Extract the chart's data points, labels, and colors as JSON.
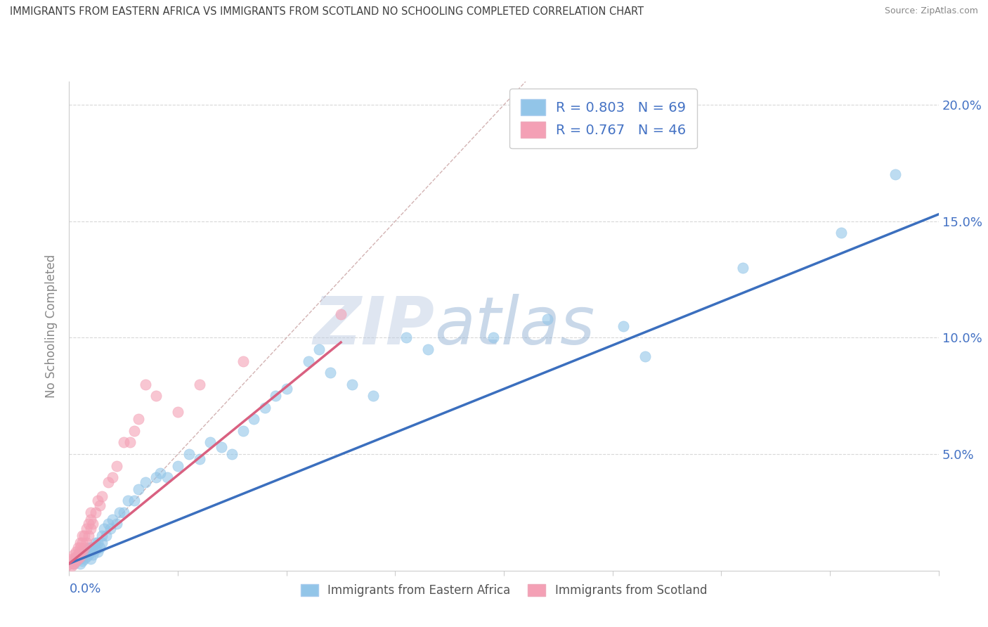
{
  "title": "IMMIGRANTS FROM EASTERN AFRICA VS IMMIGRANTS FROM SCOTLAND NO SCHOOLING COMPLETED CORRELATION CHART",
  "source": "Source: ZipAtlas.com",
  "ylabel": "No Schooling Completed",
  "series1_label": "Immigrants from Eastern Africa",
  "series2_label": "Immigrants from Scotland",
  "series1_R": "0.803",
  "series1_N": "69",
  "series2_R": "0.767",
  "series2_N": "46",
  "watermark_zip": "ZIP",
  "watermark_atlas": "atlas",
  "series1_color": "#92C5E8",
  "series2_color": "#F4A0B5",
  "trendline1_color": "#3B6FBE",
  "trendline2_color": "#D96080",
  "refline_color": "#C8A0A0",
  "background_color": "#ffffff",
  "grid_color": "#d8d8d8",
  "axis_tick_color": "#4472C4",
  "ylabel_color": "#888888",
  "title_color": "#404040",
  "source_color": "#888888",
  "xlim": [
    0.0,
    0.4
  ],
  "ylim": [
    0.0,
    0.21
  ],
  "ytick_values": [
    0.05,
    0.1,
    0.15,
    0.2
  ],
  "xtick_values": [
    0.0,
    0.05,
    0.1,
    0.15,
    0.2,
    0.25,
    0.3,
    0.35,
    0.4
  ],
  "trendline1_x0": 0.0,
  "trendline1_x1": 0.4,
  "trendline1_y0": 0.003,
  "trendline1_y1": 0.153,
  "trendline2_x0": 0.0,
  "trendline2_x1": 0.125,
  "trendline2_y0": 0.003,
  "trendline2_y1": 0.098,
  "refline_x0": 0.0,
  "refline_x1": 0.21,
  "refline_y0": 0.0,
  "refline_y1": 0.21,
  "s1_x": [
    0.002,
    0.003,
    0.003,
    0.004,
    0.004,
    0.005,
    0.005,
    0.005,
    0.006,
    0.006,
    0.006,
    0.007,
    0.007,
    0.008,
    0.008,
    0.009,
    0.009,
    0.01,
    0.01,
    0.01,
    0.011,
    0.011,
    0.012,
    0.012,
    0.013,
    0.013,
    0.014,
    0.015,
    0.015,
    0.016,
    0.017,
    0.018,
    0.019,
    0.02,
    0.022,
    0.023,
    0.025,
    0.027,
    0.03,
    0.032,
    0.035,
    0.04,
    0.042,
    0.045,
    0.05,
    0.055,
    0.06,
    0.065,
    0.07,
    0.075,
    0.08,
    0.085,
    0.09,
    0.095,
    0.1,
    0.11,
    0.115,
    0.12,
    0.13,
    0.14,
    0.155,
    0.165,
    0.195,
    0.22,
    0.255,
    0.265,
    0.31,
    0.355,
    0.38
  ],
  "s1_y": [
    0.003,
    0.004,
    0.005,
    0.005,
    0.006,
    0.003,
    0.005,
    0.007,
    0.004,
    0.006,
    0.008,
    0.005,
    0.007,
    0.006,
    0.009,
    0.007,
    0.01,
    0.005,
    0.008,
    0.01,
    0.007,
    0.01,
    0.009,
    0.012,
    0.008,
    0.012,
    0.01,
    0.012,
    0.015,
    0.018,
    0.015,
    0.02,
    0.018,
    0.022,
    0.02,
    0.025,
    0.025,
    0.03,
    0.03,
    0.035,
    0.038,
    0.04,
    0.042,
    0.04,
    0.045,
    0.05,
    0.048,
    0.055,
    0.053,
    0.05,
    0.06,
    0.065,
    0.07,
    0.075,
    0.078,
    0.09,
    0.095,
    0.085,
    0.08,
    0.075,
    0.1,
    0.095,
    0.1,
    0.108,
    0.105,
    0.092,
    0.13,
    0.145,
    0.17
  ],
  "s2_x": [
    0.001,
    0.001,
    0.001,
    0.002,
    0.002,
    0.002,
    0.003,
    0.003,
    0.003,
    0.004,
    0.004,
    0.004,
    0.005,
    0.005,
    0.005,
    0.005,
    0.006,
    0.006,
    0.006,
    0.007,
    0.007,
    0.008,
    0.008,
    0.009,
    0.009,
    0.01,
    0.01,
    0.01,
    0.011,
    0.012,
    0.013,
    0.014,
    0.015,
    0.018,
    0.02,
    0.022,
    0.025,
    0.028,
    0.03,
    0.032,
    0.035,
    0.04,
    0.05,
    0.06,
    0.08,
    0.125
  ],
  "s2_y": [
    0.002,
    0.003,
    0.005,
    0.003,
    0.005,
    0.007,
    0.004,
    0.006,
    0.008,
    0.005,
    0.007,
    0.01,
    0.006,
    0.008,
    0.01,
    0.012,
    0.008,
    0.012,
    0.015,
    0.01,
    0.015,
    0.012,
    0.018,
    0.015,
    0.02,
    0.018,
    0.022,
    0.025,
    0.02,
    0.025,
    0.03,
    0.028,
    0.032,
    0.038,
    0.04,
    0.045,
    0.055,
    0.055,
    0.06,
    0.065,
    0.08,
    0.075,
    0.068,
    0.08,
    0.09,
    0.11
  ]
}
